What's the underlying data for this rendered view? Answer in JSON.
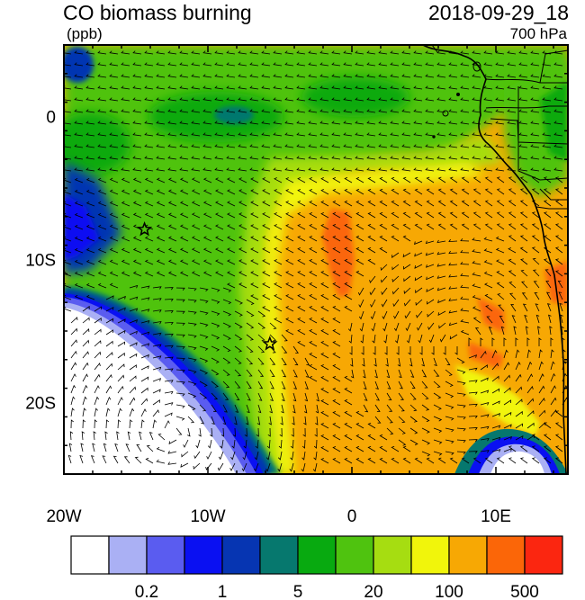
{
  "header": {
    "title": "CO biomass burning",
    "units": "(ppb)",
    "datetime": "2018-09-29_18",
    "level": "700 hPa"
  },
  "map": {
    "lon_range": [
      -20,
      15
    ],
    "lat_range": [
      -25,
      5
    ],
    "x_ticks": [
      {
        "lon": -20,
        "label": "20W"
      },
      {
        "lon": -10,
        "label": "10W"
      },
      {
        "lon": 0,
        "label": "0"
      },
      {
        "lon": 10,
        "label": "10E"
      }
    ],
    "y_ticks": [
      {
        "lat": 0,
        "label": "0"
      },
      {
        "lat": -10,
        "label": "10S"
      },
      {
        "lat": -20,
        "label": "20S"
      }
    ],
    "markers": [
      {
        "name": "star-marker-ascension",
        "symbol": "star",
        "lon": -14.4,
        "lat": -7.9
      },
      {
        "name": "star-marker-st-helena",
        "symbol": "star",
        "lon": -5.7,
        "lat": -15.9
      }
    ]
  },
  "colorbar": {
    "colors": [
      "#ffffff",
      "#aab0f4",
      "#5a5cf0",
      "#0a10f2",
      "#0635b2",
      "#06786e",
      "#08aa10",
      "#4fc30f",
      "#a6dd11",
      "#f1f50b",
      "#f7a804",
      "#fb6608",
      "#fb2610"
    ],
    "labels": [
      "0.2",
      "1",
      "5",
      "20",
      "100",
      "500"
    ]
  }
}
